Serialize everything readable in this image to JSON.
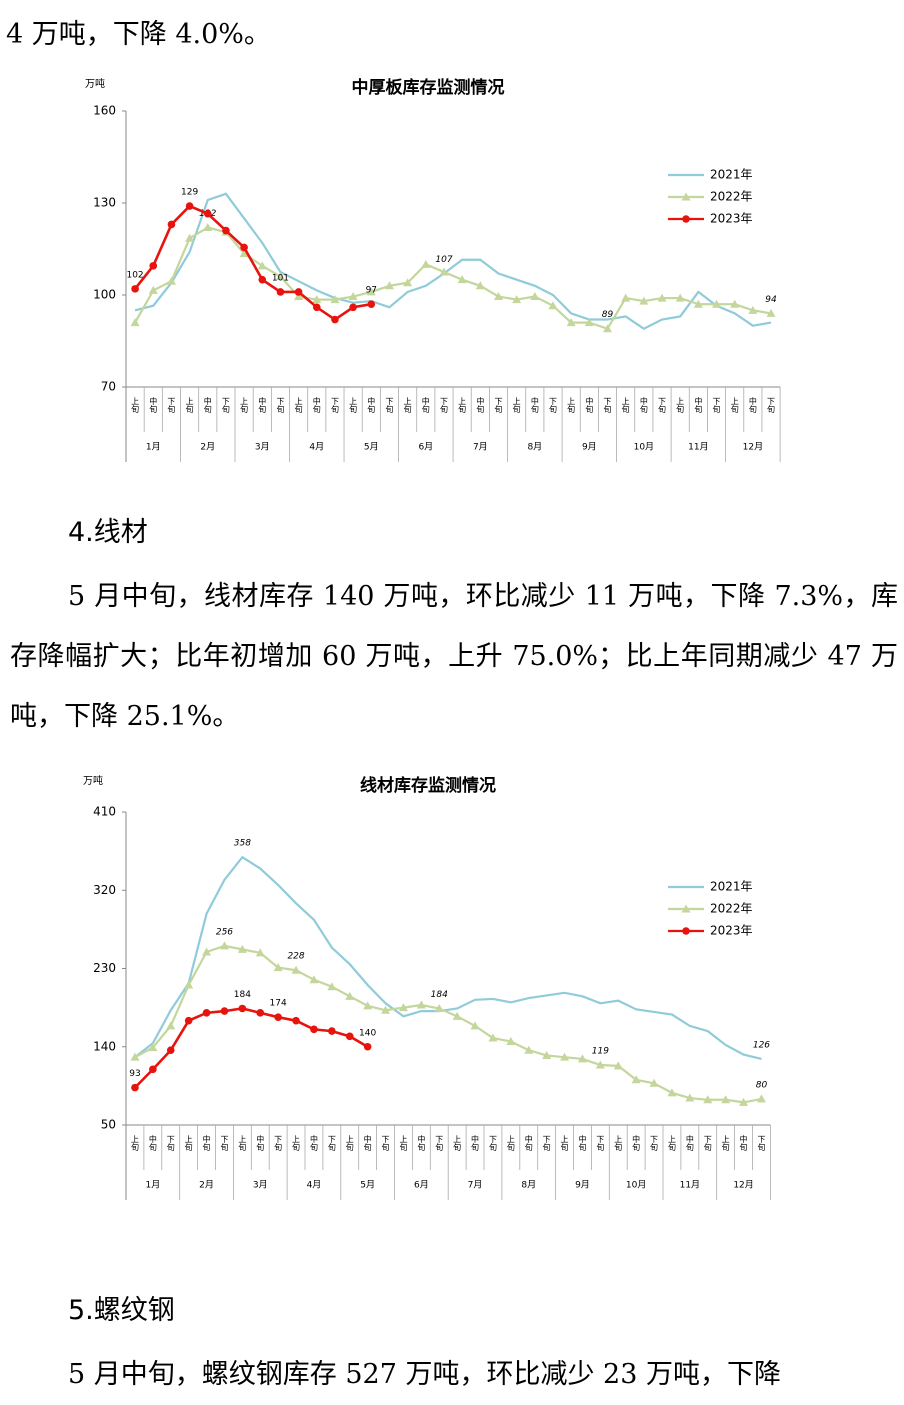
{
  "document": {
    "top_line": "4 万吨，下降 4.0%。",
    "heading_4": "4.线材",
    "para_4": "5 月中旬，线材库存 140 万吨，环比减少 11 万吨，下降 7.3%，库存降幅扩大；比年初增加 60 万吨，上升 75.0%；比上年同期减少 47 万吨，下降 25.1%。",
    "heading_5": "5.螺纹钢",
    "para_5": "5 月中旬，螺纹钢库存 527 万吨，环比减少 23 万吨，下降"
  },
  "chart_data": [
    {
      "type": "line",
      "title": "中厚板库存监测情况",
      "y_label": "万吨",
      "categories": [
        "上旬",
        "中旬",
        "下旬",
        "上旬",
        "中旬",
        "下旬",
        "上旬",
        "中旬",
        "下旬",
        "上旬",
        "中旬",
        "下旬",
        "上旬",
        "中旬",
        "下旬",
        "上旬",
        "中旬",
        "下旬",
        "上旬",
        "中旬",
        "下旬",
        "上旬",
        "中旬",
        "下旬",
        "上旬",
        "中旬",
        "下旬",
        "上旬",
        "中旬",
        "下旬",
        "上旬",
        "中旬",
        "下旬",
        "上旬",
        "中旬",
        "下旬"
      ],
      "months": [
        "1月",
        "2月",
        "3月",
        "4月",
        "5月",
        "6月",
        "7月",
        "8月",
        "9月",
        "10月",
        "11月",
        "12月"
      ],
      "ylim": [
        70,
        160
      ],
      "yticks": [
        70,
        100,
        130,
        160
      ],
      "grid": false,
      "series": [
        {
          "name": "2021年",
          "color": "#8fcbd9",
          "marker": "none",
          "values": [
            95,
            96.5,
            104,
            114,
            131,
            133,
            125,
            117,
            107.5,
            104.5,
            101.5,
            99,
            97.5,
            98,
            96,
            101,
            103,
            107,
            111.5,
            111.5,
            107,
            105,
            103,
            100,
            94,
            92,
            92,
            93,
            89,
            92,
            93,
            101,
            96.5,
            94,
            90,
            91
          ],
          "value_labels": {
            "17": "107"
          }
        },
        {
          "name": "2022年",
          "color": "#c3d69b",
          "marker": "triangle",
          "values": [
            91,
            101.5,
            104.5,
            118.5,
            122,
            120.5,
            113.5,
            109.5,
            106,
            99.5,
            98.5,
            98.5,
            99.5,
            101,
            103,
            104,
            110,
            107.5,
            105,
            103,
            99.5,
            98.5,
            99.5,
            96.5,
            91,
            91,
            89,
            99,
            98,
            99,
            99,
            97,
            97,
            97,
            95,
            94
          ],
          "value_labels": {
            "4": "122",
            "26": "89",
            "35": "94"
          }
        },
        {
          "name": "2023年",
          "color": "#e8130d",
          "marker": "circle",
          "values": [
            102,
            109.5,
            123,
            129,
            126.5,
            121,
            115.5,
            105,
            101,
            101,
            96,
            92,
            96,
            97,
            null,
            null,
            null,
            null,
            null,
            null,
            null,
            null,
            null,
            null,
            null,
            null,
            null,
            null,
            null,
            null,
            null,
            null,
            null,
            null,
            null,
            null
          ],
          "value_labels": {
            "0": "102",
            "3": "129",
            "8": "101",
            "13": "97"
          }
        }
      ]
    },
    {
      "type": "line",
      "title": "线材库存监测情况",
      "y_label": "万吨",
      "categories": [
        "上旬",
        "中旬",
        "下旬",
        "上旬",
        "中旬",
        "下旬",
        "上旬",
        "中旬",
        "下旬",
        "上旬",
        "中旬",
        "下旬",
        "上旬",
        "中旬",
        "下旬",
        "上旬",
        "中旬",
        "下旬",
        "上旬",
        "中旬",
        "下旬",
        "上旬",
        "中旬",
        "下旬",
        "上旬",
        "中旬",
        "下旬",
        "上旬",
        "中旬",
        "下旬",
        "上旬",
        "中旬",
        "下旬",
        "上旬",
        "中旬",
        "下旬"
      ],
      "months": [
        "1月",
        "2月",
        "3月",
        "4月",
        "5月",
        "6月",
        "7月",
        "8月",
        "9月",
        "10月",
        "11月",
        "12月"
      ],
      "ylim": [
        50,
        410
      ],
      "yticks": [
        50,
        140,
        230,
        320,
        410
      ],
      "grid": false,
      "series": [
        {
          "name": "2021年",
          "color": "#8fcbd9",
          "marker": "none",
          "values": [
            128,
            144,
            182,
            213,
            293,
            332,
            358,
            345,
            326,
            305,
            286,
            254,
            235,
            211,
            190,
            175,
            181,
            181,
            184,
            194,
            195,
            191,
            196,
            199,
            202,
            198,
            190,
            193,
            183,
            180,
            177,
            164,
            158,
            142,
            131,
            126
          ],
          "value_labels": {
            "6": "358",
            "35": "126"
          }
        },
        {
          "name": "2022年",
          "color": "#c3d69b",
          "marker": "triangle",
          "values": [
            128,
            139,
            164,
            211,
            249,
            256,
            252,
            248,
            231,
            228,
            217,
            209,
            198,
            187,
            182,
            185,
            188,
            184,
            175,
            164,
            150,
            146,
            136,
            130,
            128,
            126,
            119,
            118,
            102,
            98,
            87,
            81,
            79,
            79,
            76,
            80
          ],
          "value_labels": {
            "5": "256",
            "9": "228",
            "17": "184",
            "26": "119",
            "35": "80"
          }
        },
        {
          "name": "2023年",
          "color": "#e8130d",
          "marker": "circle",
          "values": [
            93,
            114,
            136,
            170,
            179,
            181,
            184,
            179,
            174,
            170,
            160,
            158,
            152,
            140,
            null,
            null,
            null,
            null,
            null,
            null,
            null,
            null,
            null,
            null,
            null,
            null,
            null,
            null,
            null,
            null,
            null,
            null,
            null,
            null,
            null,
            null
          ],
          "value_labels": {
            "0": "93",
            "6": "184",
            "8": "174",
            "13": "140"
          }
        }
      ]
    }
  ]
}
